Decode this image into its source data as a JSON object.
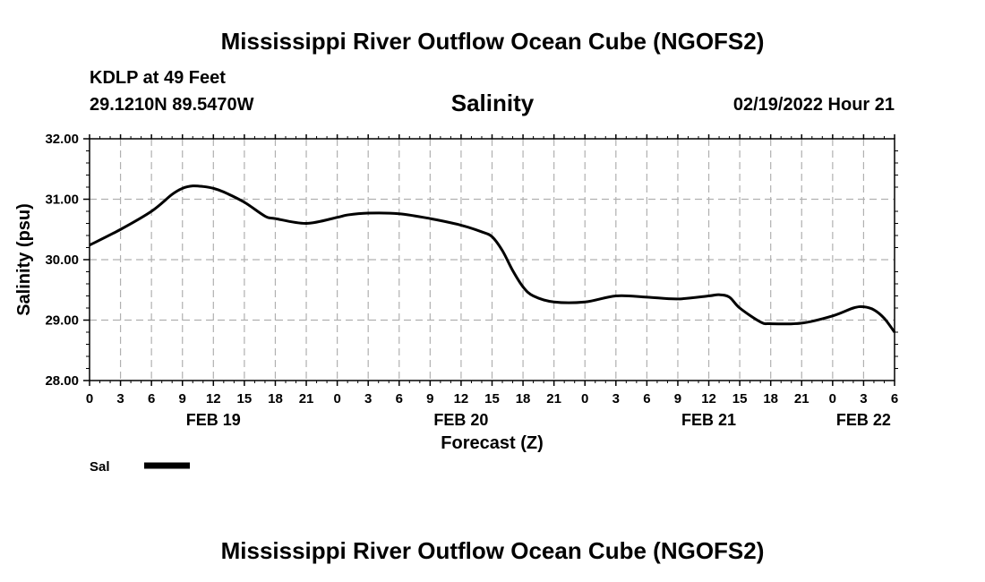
{
  "header": {
    "title": "Mississippi River Outflow Ocean Cube (NGOFS2)",
    "station": "KDLP at 49 Feet",
    "coords": "29.1210N  89.5470W",
    "datetime": "02/19/2022 Hour 21"
  },
  "footer": {
    "title": "Mississippi River Outflow Ocean Cube (NGOFS2)"
  },
  "chart_data": {
    "type": "line",
    "title": "Salinity",
    "xlabel": "Forecast (Z)",
    "ylabel": "Salinity (psu)",
    "ylim": [
      28.0,
      32.0
    ],
    "xlim": [
      0,
      78
    ],
    "x_unit": "hours from FEB 19 00Z",
    "grid": true,
    "y_ticks": [
      "28.00",
      "29.00",
      "30.00",
      "31.00",
      "32.00"
    ],
    "y_tick_values": [
      28,
      29,
      30,
      31,
      32
    ],
    "x_tick_labels": [
      "0",
      "3",
      "6",
      "9",
      "12",
      "15",
      "18",
      "21",
      "0",
      "3",
      "6",
      "9",
      "12",
      "15",
      "18",
      "21",
      "0",
      "3",
      "6",
      "9",
      "12",
      "15",
      "18",
      "21",
      "0",
      "3",
      "6"
    ],
    "day_labels": [
      {
        "label": "FEB 19",
        "hour": 12
      },
      {
        "label": "FEB 20",
        "hour": 36
      },
      {
        "label": "FEB 21",
        "hour": 60
      },
      {
        "label": "FEB 22",
        "hour": 75
      }
    ],
    "legend": {
      "label": "Sal",
      "position": "bottom-left"
    },
    "series": [
      {
        "name": "Sal",
        "x": [
          0,
          3,
          6,
          8,
          9,
          10,
          11,
          12,
          13,
          15,
          17,
          18,
          21,
          24,
          25,
          27,
          30,
          33,
          36,
          38,
          39,
          40,
          41,
          42,
          43,
          45,
          48,
          51,
          54,
          57,
          60,
          61,
          62,
          63,
          65,
          66,
          69,
          72,
          74,
          75,
          76,
          77,
          78
        ],
        "values": [
          30.24,
          30.5,
          30.8,
          31.08,
          31.18,
          31.22,
          31.21,
          31.18,
          31.12,
          30.95,
          30.72,
          30.68,
          30.6,
          30.7,
          30.74,
          30.77,
          30.76,
          30.68,
          30.57,
          30.46,
          30.38,
          30.15,
          29.82,
          29.55,
          29.4,
          29.3,
          29.3,
          29.4,
          29.38,
          29.35,
          29.4,
          29.42,
          29.38,
          29.2,
          28.97,
          28.94,
          28.95,
          29.07,
          29.2,
          29.22,
          29.17,
          29.03,
          28.8
        ]
      }
    ]
  }
}
